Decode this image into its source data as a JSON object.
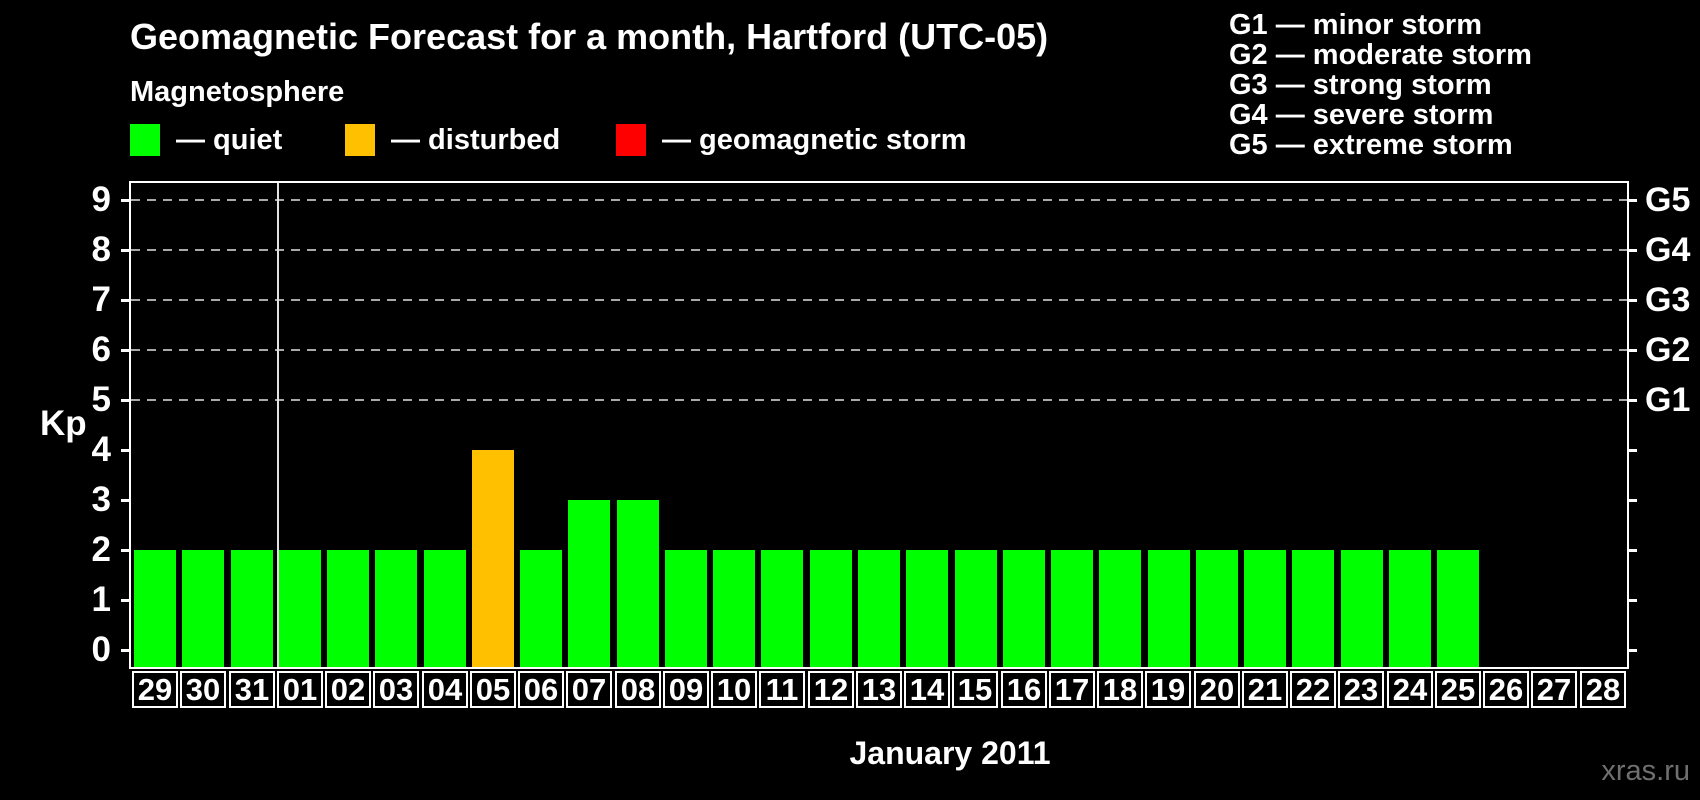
{
  "title": "Geomagnetic Forecast for a month, Hartford (UTC-05)",
  "legend": {
    "heading": "Magnetosphere",
    "items": [
      {
        "name": "quiet",
        "label": "— quiet",
        "color": "#00ff00"
      },
      {
        "name": "disturbed",
        "label": "— disturbed",
        "color": "#ffc000"
      },
      {
        "name": "storm",
        "label": "— geomagnetic storm",
        "color": "#ff0000"
      }
    ]
  },
  "storm_scale_legend": [
    "G1 — minor storm",
    "G2 — moderate storm",
    "G3 — strong storm",
    "G4 — severe storm",
    "G5 — extreme storm"
  ],
  "watermark": "xras.ru",
  "chart_data": {
    "type": "bar",
    "title": "Geomagnetic Forecast for a month, Hartford (UTC-05)",
    "xlabel": "January 2011",
    "ylabel": "Kp",
    "ylim": [
      0,
      9.3
    ],
    "yticks": [
      0,
      1,
      2,
      3,
      4,
      5,
      6,
      7,
      8,
      9
    ],
    "gridlines_at": [
      5,
      6,
      7,
      8,
      9
    ],
    "grid": "dashed horizontal at storm levels only",
    "legend_position": "top",
    "right_axis_labels": [
      {
        "kp": 5,
        "label": "G1"
      },
      {
        "kp": 6,
        "label": "G2"
      },
      {
        "kp": 7,
        "label": "G3"
      },
      {
        "kp": 8,
        "label": "G4"
      },
      {
        "kp": 9,
        "label": "G5"
      }
    ],
    "month_boundary_after_category": "31",
    "categories": [
      "29",
      "30",
      "31",
      "01",
      "02",
      "03",
      "04",
      "05",
      "06",
      "07",
      "08",
      "09",
      "10",
      "11",
      "12",
      "13",
      "14",
      "15",
      "16",
      "17",
      "18",
      "19",
      "20",
      "21",
      "22",
      "23",
      "24",
      "25",
      "26",
      "27",
      "28"
    ],
    "values": [
      2,
      2,
      2,
      2,
      2,
      2,
      2,
      4,
      2,
      3,
      3,
      2,
      2,
      2,
      2,
      2,
      2,
      2,
      2,
      2,
      2,
      2,
      2,
      2,
      2,
      2,
      2,
      2,
      null,
      null,
      null
    ],
    "bar_colors": [
      "#00ff00",
      "#00ff00",
      "#00ff00",
      "#00ff00",
      "#00ff00",
      "#00ff00",
      "#00ff00",
      "#ffc000",
      "#00ff00",
      "#00ff00",
      "#00ff00",
      "#00ff00",
      "#00ff00",
      "#00ff00",
      "#00ff00",
      "#00ff00",
      "#00ff00",
      "#00ff00",
      "#00ff00",
      "#00ff00",
      "#00ff00",
      "#00ff00",
      "#00ff00",
      "#00ff00",
      "#00ff00",
      "#00ff00",
      "#00ff00",
      "#00ff00",
      null,
      null,
      null
    ]
  }
}
